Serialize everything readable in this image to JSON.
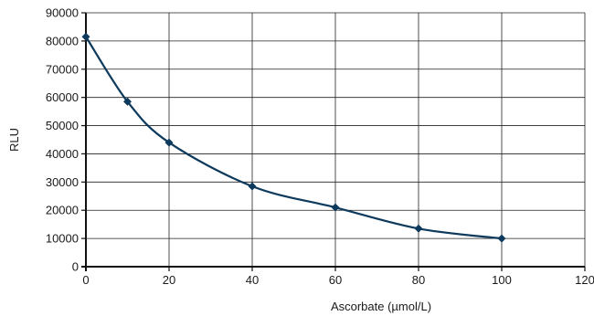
{
  "chart_data": {
    "type": "line",
    "title": "",
    "xlabel": "Ascorbate (µmol/L)",
    "ylabel": "RLU",
    "xlim": [
      0,
      120
    ],
    "ylim": [
      0,
      90000
    ],
    "x_ticks": [
      0,
      20,
      40,
      60,
      80,
      100,
      120
    ],
    "y_ticks": [
      0,
      10000,
      20000,
      30000,
      40000,
      50000,
      60000,
      70000,
      80000,
      90000
    ],
    "x_tick_labels": [
      "0",
      "20",
      "40",
      "60",
      "80",
      "100",
      "120"
    ],
    "y_tick_labels": [
      "0",
      "10000",
      "20000",
      "30000",
      "40000",
      "50000",
      "60000",
      "70000",
      "80000",
      "90000"
    ],
    "grid": true,
    "legend": "none",
    "line_color": "#0d3a5c",
    "series": [
      {
        "x": [
          0,
          10,
          20,
          40,
          60,
          80,
          100
        ],
        "y": [
          81500,
          58500,
          44000,
          28500,
          21000,
          13500,
          10000
        ]
      }
    ]
  }
}
